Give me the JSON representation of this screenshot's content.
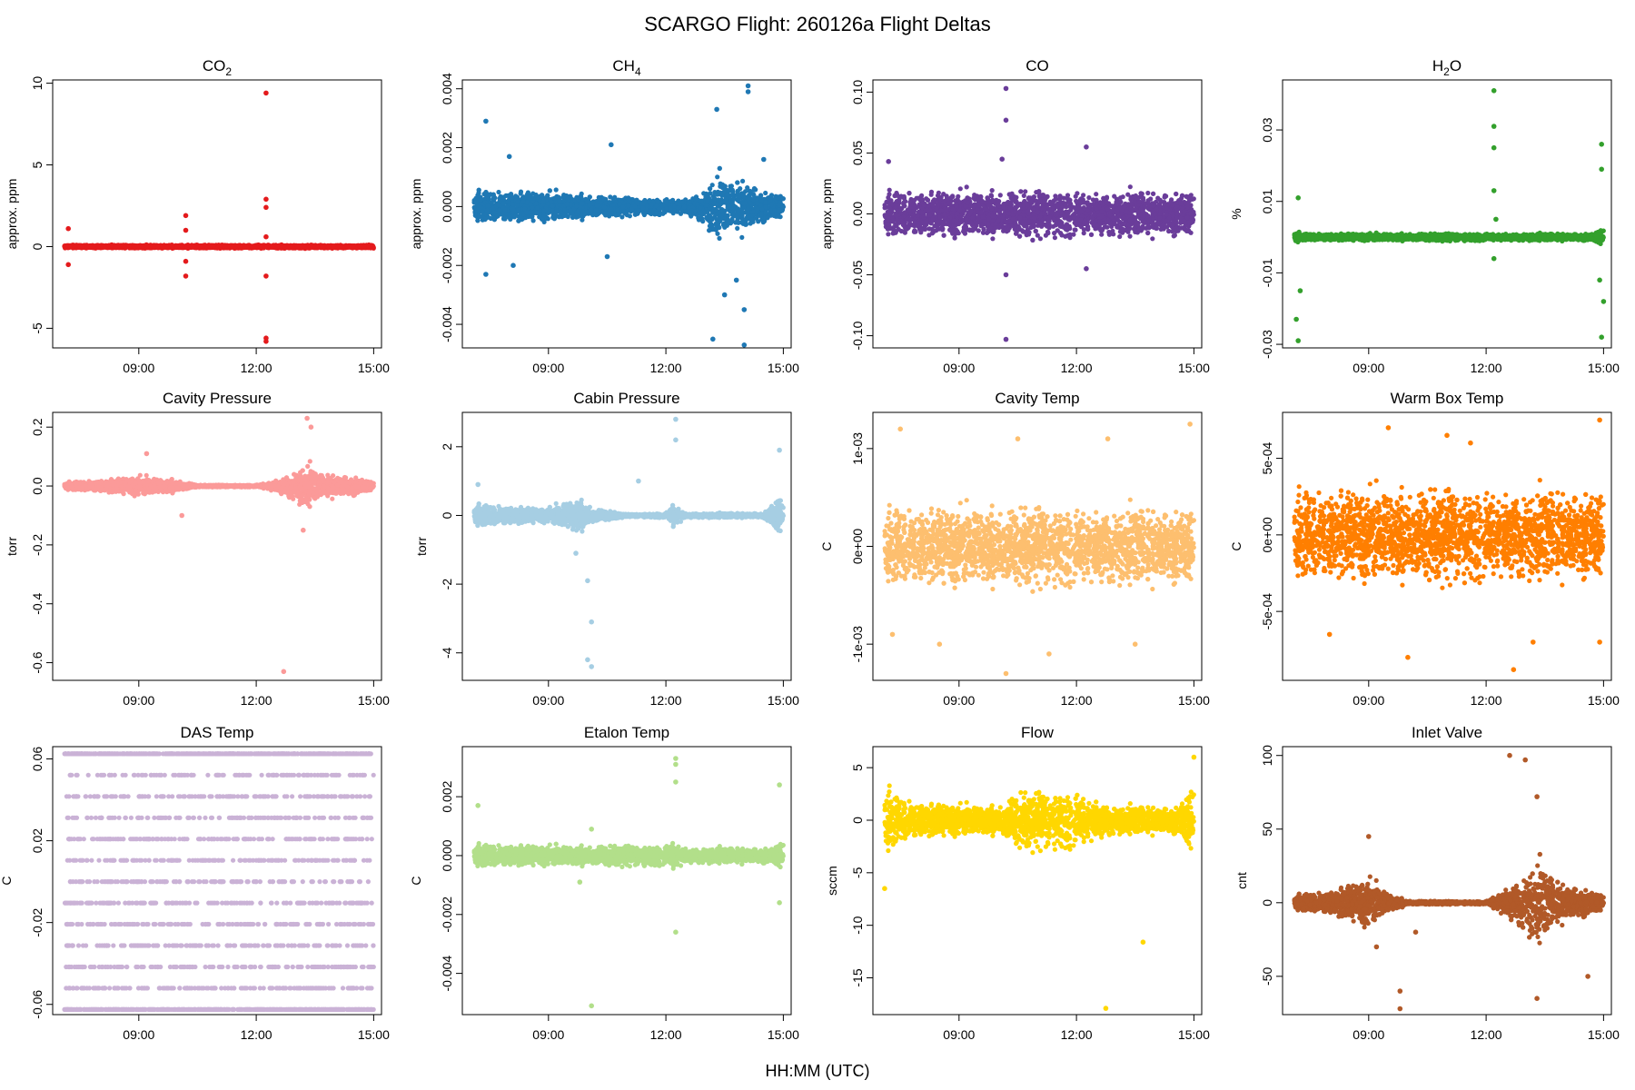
{
  "figure": {
    "title": "SCARGO Flight: 260126a  Flight Deltas",
    "xlabel": "HH:MM (UTC)"
  },
  "x_axis": {
    "range_hours": [
      6.8,
      15.2
    ],
    "ticks": [
      9,
      12,
      15
    ],
    "tick_labels": [
      "09:00",
      "12:00",
      "15:00"
    ],
    "data_range_hours": [
      7.1,
      15.0
    ]
  },
  "chart_data": [
    {
      "type": "scatter",
      "title": "CO",
      "title_sub": "2",
      "ylabel": "approx. ppm",
      "color": "#E41A1C",
      "ylim": [
        -6.2,
        10.2
      ],
      "yticks": [
        -5,
        0,
        5,
        10
      ],
      "ytick_labels": [
        "-5",
        "0",
        "5",
        "10"
      ],
      "envelope": [
        [
          7.1,
          0.15
        ],
        [
          9.0,
          0.15
        ],
        [
          12.0,
          0.15
        ],
        [
          15.0,
          0.15
        ]
      ],
      "outliers": [
        [
          7.2,
          1.1
        ],
        [
          7.2,
          -1.1
        ],
        [
          10.2,
          1.9
        ],
        [
          10.2,
          -1.8
        ],
        [
          10.2,
          1.0
        ],
        [
          10.2,
          -0.9
        ],
        [
          12.25,
          9.4
        ],
        [
          12.25,
          2.9
        ],
        [
          12.25,
          2.4
        ],
        [
          12.25,
          -1.8
        ],
        [
          12.25,
          -5.6
        ],
        [
          12.25,
          -5.8
        ],
        [
          12.25,
          0.6
        ]
      ]
    },
    {
      "type": "scatter",
      "title": "CH",
      "title_sub": "4",
      "ylabel": "approx. ppm",
      "color": "#1F78B4",
      "ylim": [
        -0.0048,
        0.0043
      ],
      "yticks": [
        -0.004,
        -0.002,
        0,
        0.002,
        0.004
      ],
      "ytick_labels": [
        "-0.004",
        "-0.002",
        "0.000",
        "0.002",
        "0.004"
      ],
      "envelope": [
        [
          7.1,
          0.0008
        ],
        [
          8.0,
          0.0008
        ],
        [
          9.5,
          0.0007
        ],
        [
          10.5,
          0.0005
        ],
        [
          11.5,
          0.0004
        ],
        [
          12.5,
          0.0004
        ],
        [
          13.0,
          0.0009
        ],
        [
          13.3,
          0.0018
        ],
        [
          13.6,
          0.0011
        ],
        [
          14.0,
          0.0015
        ],
        [
          14.5,
          0.0008
        ],
        [
          15.0,
          0.0006
        ]
      ],
      "outliers": [
        [
          7.4,
          0.0029
        ],
        [
          7.4,
          -0.0023
        ],
        [
          8.0,
          0.0017
        ],
        [
          8.1,
          -0.002
        ],
        [
          10.6,
          0.0021
        ],
        [
          10.5,
          -0.0017
        ],
        [
          13.3,
          0.0033
        ],
        [
          13.2,
          -0.0045
        ],
        [
          13.5,
          -0.003
        ],
        [
          14.1,
          0.0041
        ],
        [
          14.1,
          0.0039
        ],
        [
          14.0,
          -0.0047
        ],
        [
          14.0,
          -0.0035
        ],
        [
          14.5,
          0.0016
        ],
        [
          13.8,
          -0.0025
        ]
      ]
    },
    {
      "type": "scatter",
      "title": "CO",
      "title_sub": "",
      "ylabel": "approx. ppm",
      "color": "#6A3D9A",
      "ylim": [
        -0.11,
        0.11
      ],
      "yticks": [
        -0.1,
        -0.05,
        0,
        0.05,
        0.1
      ],
      "ytick_labels": [
        "-0.10",
        "-0.05",
        "0.00",
        "0.05",
        "0.10"
      ],
      "envelope": [
        [
          7.1,
          0.028
        ],
        [
          9.0,
          0.028
        ],
        [
          12.0,
          0.028
        ],
        [
          15.0,
          0.028
        ]
      ],
      "outliers": [
        [
          10.2,
          0.103
        ],
        [
          10.2,
          0.077
        ],
        [
          10.2,
          -0.103
        ],
        [
          10.2,
          -0.05
        ],
        [
          10.1,
          0.045
        ],
        [
          12.25,
          0.055
        ],
        [
          12.25,
          -0.045
        ],
        [
          7.2,
          0.043
        ]
      ]
    },
    {
      "type": "scatter",
      "title": "H",
      "title_sub": "2",
      "title_post": "O",
      "ylabel": "%",
      "color": "#33A02C",
      "ylim": [
        -0.031,
        0.044
      ],
      "yticks": [
        -0.03,
        -0.01,
        0.01,
        0.03
      ],
      "ytick_labels": [
        "-0.03",
        "-0.01",
        "0.01",
        "0.03"
      ],
      "envelope": [
        [
          7.1,
          0.003
        ],
        [
          7.3,
          0.0015
        ],
        [
          9.0,
          0.0015
        ],
        [
          12.0,
          0.0015
        ],
        [
          14.7,
          0.0015
        ],
        [
          15.0,
          0.004
        ]
      ],
      "outliers": [
        [
          7.2,
          0.011
        ],
        [
          7.2,
          -0.029
        ],
        [
          7.15,
          -0.023
        ],
        [
          7.25,
          -0.015
        ],
        [
          12.2,
          0.041
        ],
        [
          12.2,
          0.031
        ],
        [
          12.2,
          0.025
        ],
        [
          12.2,
          0.013
        ],
        [
          12.25,
          0.005
        ],
        [
          12.2,
          -0.006
        ],
        [
          14.95,
          0.026
        ],
        [
          14.95,
          0.019
        ],
        [
          14.95,
          -0.028
        ],
        [
          15.0,
          -0.018
        ],
        [
          14.9,
          -0.012
        ]
      ]
    },
    {
      "type": "scatter",
      "title": "Cavity Pressure",
      "ylabel": "torr",
      "color": "#FB9A99",
      "ylim": [
        -0.66,
        0.25
      ],
      "yticks": [
        -0.6,
        -0.4,
        -0.2,
        0,
        0.2
      ],
      "ytick_labels": [
        "-0.6",
        "-0.4",
        "-0.2",
        "0.0",
        "0.2"
      ],
      "envelope": [
        [
          7.1,
          0.02
        ],
        [
          8.0,
          0.03
        ],
        [
          9.0,
          0.05
        ],
        [
          10.0,
          0.03
        ],
        [
          10.5,
          0.005
        ],
        [
          12.0,
          0.005
        ],
        [
          12.5,
          0.03
        ],
        [
          13.0,
          0.08
        ],
        [
          13.3,
          0.12
        ],
        [
          13.6,
          0.06
        ],
        [
          14.0,
          0.06
        ],
        [
          14.5,
          0.05
        ],
        [
          15.0,
          0.02
        ]
      ],
      "outliers": [
        [
          12.7,
          -0.63
        ],
        [
          13.3,
          0.23
        ],
        [
          13.2,
          -0.15
        ],
        [
          10.1,
          -0.1
        ],
        [
          9.2,
          0.11
        ],
        [
          13.4,
          0.2
        ]
      ]
    },
    {
      "type": "scatter",
      "title": "Cabin Pressure",
      "ylabel": "torr",
      "color": "#A6CEE3",
      "ylim": [
        -4.8,
        3.0
      ],
      "yticks": [
        -4,
        -2,
        0,
        2
      ],
      "ytick_labels": [
        "-4",
        "-2",
        "0",
        "2"
      ],
      "envelope": [
        [
          7.1,
          0.5
        ],
        [
          9.0,
          0.3
        ],
        [
          9.7,
          0.8
        ],
        [
          10.2,
          0.3
        ],
        [
          11.0,
          0.05
        ],
        [
          12.0,
          0.1
        ],
        [
          12.2,
          0.6
        ],
        [
          12.5,
          0.1
        ],
        [
          14.5,
          0.1
        ],
        [
          14.9,
          0.9
        ],
        [
          15.0,
          0.5
        ]
      ],
      "outliers": [
        [
          7.2,
          0.9
        ],
        [
          10.0,
          -1.9
        ],
        [
          10.1,
          -3.1
        ],
        [
          10.1,
          -4.4
        ],
        [
          10.0,
          -4.2
        ],
        [
          12.25,
          2.8
        ],
        [
          12.25,
          2.2
        ],
        [
          11.3,
          1.0
        ],
        [
          14.9,
          1.9
        ],
        [
          9.7,
          -1.1
        ]
      ]
    },
    {
      "type": "scatter",
      "title": "Cavity Temp",
      "ylabel": "C",
      "color": "#FDBF6F",
      "ylim": [
        -0.00137,
        0.00137
      ],
      "yticks": [
        -0.001,
        0,
        0.001
      ],
      "ytick_labels": [
        "-1e-03",
        "0e+00",
        "1e-03"
      ],
      "envelope": [
        [
          7.1,
          0.0006
        ],
        [
          9.0,
          0.0006
        ],
        [
          12.0,
          0.0006
        ],
        [
          15.0,
          0.0006
        ]
      ],
      "outliers": [
        [
          7.5,
          0.0012
        ],
        [
          10.2,
          -0.0013
        ],
        [
          11.3,
          -0.0011
        ],
        [
          12.8,
          0.0011
        ],
        [
          14.9,
          0.00125
        ],
        [
          8.5,
          -0.001
        ],
        [
          13.5,
          -0.001
        ],
        [
          10.5,
          0.0011
        ],
        [
          7.3,
          -0.0009
        ]
      ]
    },
    {
      "type": "scatter",
      "title": "Warm Box Temp",
      "ylabel": "C",
      "color": "#FF7F00",
      "ylim": [
        -0.00095,
        0.0008
      ],
      "yticks": [
        -0.0005,
        0,
        0.0005
      ],
      "ytick_labels": [
        "-5e-04",
        "0e+00",
        "5e-04"
      ],
      "envelope": [
        [
          7.1,
          0.00045
        ],
        [
          9.0,
          0.00045
        ],
        [
          12.0,
          0.00045
        ],
        [
          15.0,
          0.00045
        ]
      ],
      "outliers": [
        [
          12.7,
          -0.00088
        ],
        [
          11.6,
          0.0006
        ],
        [
          14.9,
          0.00075
        ],
        [
          10.0,
          -0.0008
        ],
        [
          8.0,
          -0.00065
        ],
        [
          14.9,
          -0.0007
        ],
        [
          9.5,
          0.0007
        ],
        [
          11.0,
          0.00065
        ],
        [
          13.2,
          -0.0007
        ]
      ]
    },
    {
      "type": "scatter",
      "title": "DAS Temp",
      "ylabel": "C",
      "color": "#CAB2D6",
      "ylim": [
        -0.065,
        0.066
      ],
      "yticks": [
        -0.06,
        -0.02,
        0.02,
        0.06
      ],
      "ytick_labels": [
        "-0.06",
        "-0.02",
        "0.02",
        "0.06"
      ],
      "quantized": [
        -0.0625,
        0.0625
      ],
      "envelope": [
        [
          7.1,
          0.0625
        ],
        [
          15.0,
          0.0625
        ]
      ],
      "outliers": []
    },
    {
      "type": "scatter",
      "title": "Etalon Temp",
      "ylabel": "C",
      "color": "#B2DF8A",
      "ylim": [
        -0.0054,
        0.0037
      ],
      "yticks": [
        -0.004,
        -0.002,
        0,
        0.002
      ],
      "ytick_labels": [
        "-0.004",
        "-0.002",
        "0.000",
        "0.002"
      ],
      "envelope": [
        [
          7.1,
          0.0006
        ],
        [
          9.0,
          0.0005
        ],
        [
          12.0,
          0.0005
        ],
        [
          12.2,
          0.0008
        ],
        [
          12.5,
          0.0004
        ],
        [
          14.7,
          0.0004
        ],
        [
          15.0,
          0.0008
        ]
      ],
      "outliers": [
        [
          10.1,
          -0.0051
        ],
        [
          12.25,
          0.0033
        ],
        [
          12.25,
          0.0031
        ],
        [
          12.25,
          0.0025
        ],
        [
          12.25,
          -0.0026
        ],
        [
          14.9,
          0.0024
        ],
        [
          14.9,
          -0.0016
        ],
        [
          7.2,
          0.0017
        ],
        [
          10.1,
          0.0009
        ],
        [
          9.8,
          -0.0009
        ]
      ]
    },
    {
      "type": "scatter",
      "title": "Flow",
      "ylabel": "sccm",
      "color": "#FFD700",
      "ylim": [
        -18.5,
        7.0
      ],
      "yticks": [
        -15,
        -10,
        -5,
        0,
        5
      ],
      "ytick_labels": [
        "-15",
        "-10",
        "-5",
        "0",
        "5"
      ],
      "envelope": [
        [
          7.1,
          5.5
        ],
        [
          7.4,
          3.5
        ],
        [
          8.0,
          2.5
        ],
        [
          9.0,
          2.2
        ],
        [
          10.0,
          2.0
        ],
        [
          10.5,
          4.0
        ],
        [
          11.5,
          4.0
        ],
        [
          12.0,
          4.0
        ],
        [
          12.5,
          3.0
        ],
        [
          13.0,
          2.0
        ],
        [
          14.0,
          2.0
        ],
        [
          14.6,
          2.0
        ],
        [
          15.0,
          5.5
        ]
      ],
      "outliers": [
        [
          12.75,
          -17.9
        ],
        [
          13.7,
          -11.6
        ],
        [
          7.1,
          -6.5
        ],
        [
          15.0,
          6.0
        ]
      ]
    },
    {
      "type": "scatter",
      "title": "Inlet Valve",
      "ylabel": "cnt",
      "color": "#B15928",
      "ylim": [
        -76,
        106
      ],
      "yticks": [
        -50,
        0,
        50,
        100
      ],
      "ytick_labels": [
        "-50",
        "0",
        "50",
        "100"
      ],
      "envelope": [
        [
          7.1,
          8.0
        ],
        [
          8.0,
          12.0
        ],
        [
          9.0,
          25.0
        ],
        [
          9.5,
          10.0
        ],
        [
          10.0,
          2.0
        ],
        [
          11.0,
          1.5
        ],
        [
          12.0,
          1.5
        ],
        [
          12.5,
          15.0
        ],
        [
          13.0,
          30.0
        ],
        [
          13.3,
          45.0
        ],
        [
          13.7,
          25.0
        ],
        [
          14.0,
          20.0
        ],
        [
          14.5,
          15.0
        ],
        [
          15.0,
          8.0
        ]
      ],
      "outliers": [
        [
          12.6,
          100.0
        ],
        [
          13.0,
          97.0
        ],
        [
          13.3,
          72.0
        ],
        [
          9.8,
          -72.0
        ],
        [
          9.8,
          -60.0
        ],
        [
          13.3,
          -65.0
        ],
        [
          14.6,
          -50.0
        ],
        [
          9.0,
          45.0
        ],
        [
          9.2,
          -30.0
        ],
        [
          10.2,
          -20.0
        ]
      ]
    }
  ]
}
